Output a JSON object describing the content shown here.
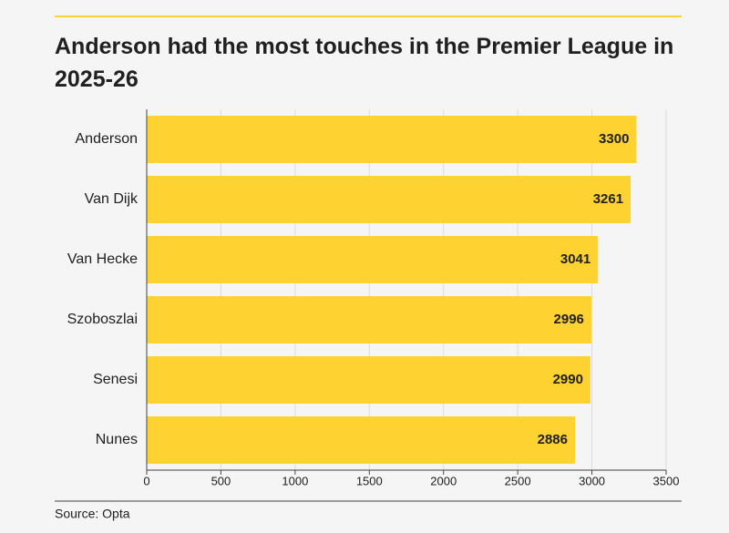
{
  "chart_data": {
    "type": "bar",
    "orientation": "horizontal",
    "title": "Anderson had the most touches in the Premier League in 2025-26",
    "categories": [
      "Anderson",
      "Van Dijk",
      "Van Hecke",
      "Szoboszlai",
      "Senesi",
      "Nunes"
    ],
    "values": [
      3300,
      3261,
      3041,
      2996,
      2990,
      2886
    ],
    "color": "#fed230",
    "xlim": [
      0,
      3500
    ],
    "xticks": [
      0,
      500,
      1000,
      1500,
      2000,
      2500,
      3000,
      3500
    ],
    "grid": true,
    "source": "Source: Opta"
  }
}
